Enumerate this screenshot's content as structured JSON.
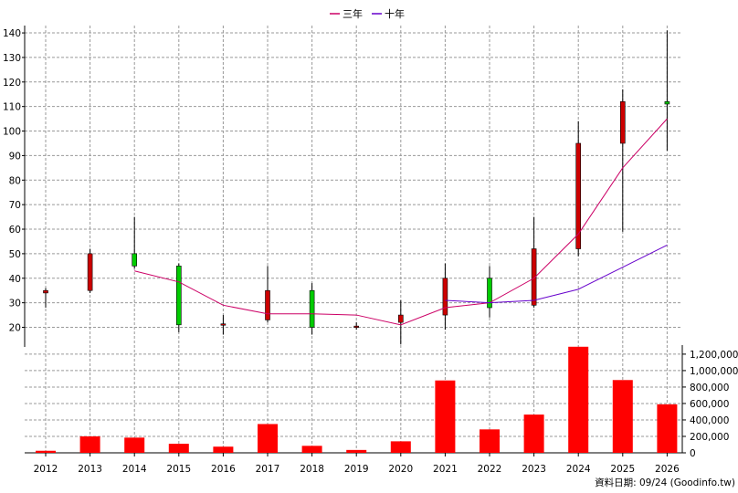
{
  "chart_data": {
    "type": "candlestick-with-volume",
    "legend": [
      {
        "name": "三年",
        "color": "#cc0066"
      },
      {
        "name": "十年",
        "color": "#6600cc"
      }
    ],
    "source_note": "資料日期: 09/24  (Goodinfo.tw)",
    "price_axis": {
      "ylim": [
        12,
        143
      ],
      "ticks": [
        20,
        30,
        40,
        50,
        60,
        70,
        80,
        90,
        100,
        110,
        120,
        130,
        140
      ]
    },
    "volume_axis": {
      "ylim": [
        0,
        1310000
      ],
      "ticks": [
        0,
        200000,
        400000,
        600000,
        800000,
        1000000,
        1200000
      ],
      "tick_labels": [
        "0",
        "200,000",
        "400,000",
        "600,000",
        "800,000",
        "1,000,000",
        "1,200,000"
      ]
    },
    "categories": [
      "2012",
      "2013",
      "2014",
      "2015",
      "2016",
      "2017",
      "2018",
      "2019",
      "2020",
      "2021",
      "2022",
      "2023",
      "2024",
      "2025",
      "2026"
    ],
    "candles": [
      {
        "open": 34,
        "close": 35,
        "high": 36,
        "low": 28
      },
      {
        "open": 35,
        "close": 50,
        "high": 52,
        "low": 34
      },
      {
        "open": 50,
        "close": 45,
        "high": 65,
        "low": 44
      },
      {
        "open": 45,
        "close": 21,
        "high": 46,
        "low": 18
      },
      {
        "open": 21,
        "close": 21.4,
        "high": 25,
        "low": 17
      },
      {
        "open": 23,
        "close": 35,
        "high": 45,
        "low": 22
      },
      {
        "open": 35,
        "close": 20,
        "high": 38,
        "low": 17
      },
      {
        "open": 20,
        "close": 20.5,
        "high": 22,
        "low": 19
      },
      {
        "open": 22,
        "close": 25,
        "high": 31,
        "low": 13
      },
      {
        "open": 25,
        "close": 40,
        "high": 46,
        "low": 19
      },
      {
        "open": 40,
        "close": 28,
        "high": 45,
        "low": 24
      },
      {
        "open": 29,
        "close": 52,
        "high": 65,
        "low": 28
      },
      {
        "open": 52,
        "close": 95,
        "high": 104,
        "low": 49
      },
      {
        "open": 95,
        "close": 112,
        "high": 117,
        "low": 59
      },
      {
        "open": 112,
        "close": 111,
        "high": 141,
        "low": 92
      }
    ],
    "series": [
      {
        "name": "三年",
        "values": [
          null,
          null,
          43,
          38.5,
          29,
          25.5,
          25.5,
          25,
          21,
          28,
          30,
          40,
          58,
          85,
          105
        ]
      },
      {
        "name": "十年",
        "values": [
          null,
          null,
          null,
          null,
          null,
          null,
          null,
          null,
          null,
          31,
          30,
          31,
          35.5,
          44.5,
          53.5
        ]
      }
    ],
    "volume": [
      25000,
      200000,
      185000,
      110000,
      75000,
      350000,
      85000,
      35000,
      140000,
      880000,
      285000,
      465000,
      1290000,
      885000,
      590000
    ]
  }
}
